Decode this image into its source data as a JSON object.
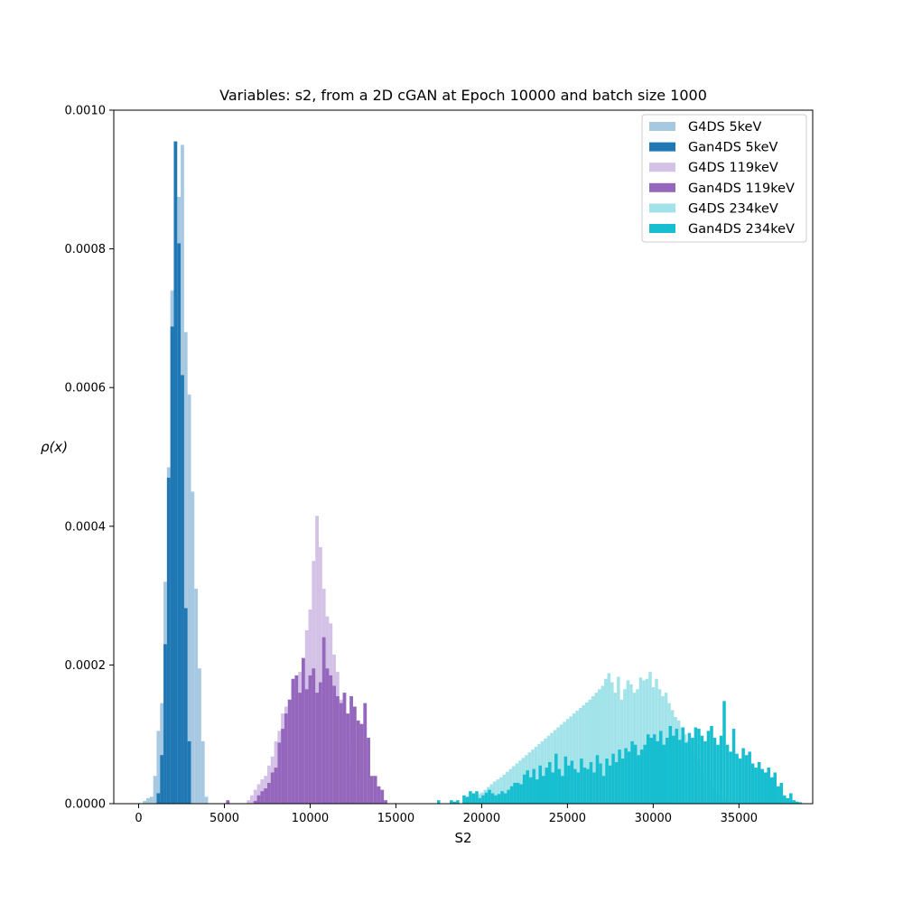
{
  "chart_data": {
    "type": "bar",
    "title": "Variables: s2, from a 2D cGAN at Epoch 10000 and batch size 1000",
    "xlabel": "S2",
    "ylabel": "ρ(x)",
    "xlim": [
      -1450,
      39300
    ],
    "ylim": [
      0,
      0.001
    ],
    "xticks": [
      {
        "value": 0,
        "label": "0"
      },
      {
        "value": 5000,
        "label": "5000"
      },
      {
        "value": 10000,
        "label": "10000"
      },
      {
        "value": 15000,
        "label": "15000"
      },
      {
        "value": 20000,
        "label": "20000"
      },
      {
        "value": 25000,
        "label": "25000"
      },
      {
        "value": 30000,
        "label": "30000"
      },
      {
        "value": 35000,
        "label": "35000"
      }
    ],
    "yticks": [
      {
        "value": 0,
        "label": "0.0000"
      },
      {
        "value": 0.0002,
        "label": "0.0002"
      },
      {
        "value": 0.0004,
        "label": "0.0004"
      },
      {
        "value": 0.0006,
        "label": "0.0006"
      },
      {
        "value": 0.0008,
        "label": "0.0008"
      },
      {
        "value": 0.001,
        "label": "0.0010"
      }
    ],
    "grid": false,
    "legend_position": "top-right",
    "series": [
      {
        "name": "G4DS 5keV",
        "color": "#a6c8e0",
        "bin_start": 250,
        "bin_width": 200,
        "values": [
          4e-06,
          8e-06,
          1e-05,
          4e-05,
          0.000105,
          0.000145,
          0.00032,
          0.000485,
          0.00074,
          0.000655,
          0.000875,
          0.00095,
          0.00068,
          0.00059,
          0.00045,
          0.00031,
          0.000195,
          9e-05,
          1e-05
        ]
      },
      {
        "name": "Gan4DS 5keV",
        "color": "#1f77b4",
        "bin_start": 1050,
        "bin_width": 200,
        "values": [
          1.5e-05,
          7e-05,
          0.00023,
          0.00047,
          0.000688,
          0.000955,
          0.000808,
          0.000618,
          0.000282,
          9e-05
        ]
      },
      {
        "name": "G4DS 119keV",
        "color": "#d4c1e6",
        "bin_start": 6300,
        "bin_width": 200,
        "values": [
          5e-06,
          1.2e-05,
          2e-05,
          2.8e-05,
          3.5e-05,
          4e-05,
          5.5e-05,
          6.8e-05,
          9e-05,
          0.000105,
          0.00013,
          0.00014,
          0.00015,
          0.00017,
          0.00018,
          0.00019,
          0.00021,
          0.00025,
          0.00028,
          0.00035,
          0.000415,
          0.00037,
          0.00031,
          0.00027,
          0.00026,
          0.000215,
          0.00019,
          0.00015,
          0.00013,
          9e-05,
          6e-05,
          4e-05,
          2e-05,
          1e-05
        ]
      },
      {
        "name": "Gan4DS 119keV",
        "color": "#9467bd",
        "bin_start": 5100,
        "bin_width": 200,
        "values": [
          5e-06,
          0,
          0,
          0,
          0,
          0,
          0,
          0,
          4e-06,
          1.2e-05,
          1.8e-05,
          2.2e-05,
          3e-05,
          4.5e-05,
          5.2e-05,
          8.8e-05,
          0.000108,
          0.00013,
          0.00015,
          0.00018,
          0.000185,
          0.00016,
          0.00021,
          0.000165,
          0.000185,
          0.000195,
          0.00016,
          0.000175,
          0.00024,
          0.000195,
          0.000185,
          0.00017,
          0.000155,
          0.000145,
          0.00016,
          0.00013,
          0.000155,
          0.00014,
          0.00012,
          0.000115,
          0.000145,
          9.5e-05,
          4e-05,
          4e-05,
          2.5e-05,
          2e-05,
          5e-06
        ]
      },
      {
        "name": "G4DS 234keV",
        "color": "#a2e3ea",
        "bin_start": 19000,
        "bin_width": 185,
        "values": [
          8e-06,
          1e-05,
          1e-05,
          1.2e-05,
          1.4e-05,
          1.6e-05,
          2e-05,
          2.4e-05,
          2.8e-05,
          3.2e-05,
          3.5e-05,
          3.8e-05,
          4.2e-05,
          4.6e-05,
          5e-05,
          5.4e-05,
          5.8e-05,
          6.2e-05,
          6.6e-05,
          7e-05,
          7.4e-05,
          7.8e-05,
          8.2e-05,
          8.6e-05,
          9e-05,
          9.4e-05,
          9.8e-05,
          0.000102,
          0.000106,
          0.00011,
          0.000114,
          0.000118,
          0.000122,
          0.000126,
          0.00013,
          0.000134,
          0.000138,
          0.000142,
          0.000146,
          0.00015,
          0.000155,
          0.00016,
          0.000165,
          0.00017,
          0.00018,
          0.000188,
          0.000175,
          0.00016,
          0.000183,
          0.00015,
          0.000165,
          0.000178,
          0.000172,
          0.00016,
          0.000165,
          0.000182,
          0.000178,
          0.00018,
          0.00019,
          0.000168,
          0.00018,
          0.000165,
          0.000155,
          0.00016,
          0.000145,
          0.000135,
          0.000125,
          0.00012,
          0.00011,
          0.0001,
          9e-05,
          8e-05,
          7e-05,
          6e-05,
          5.2e-05,
          4.5e-05,
          3.8e-05,
          3.2e-05,
          2.5e-05,
          1.8e-05,
          1.2e-05,
          8e-06,
          6e-06,
          5e-06,
          4e-06,
          3e-06,
          2e-06,
          2e-06,
          1e-06,
          1e-06,
          1e-06,
          1e-06,
          1e-06,
          1e-06,
          1e-06,
          1e-06
        ]
      },
      {
        "name": "Gan4DS 234keV",
        "color": "#17becf",
        "bin_start": 17400,
        "bin_width": 185,
        "values": [
          5e-06,
          0,
          0,
          0,
          5e-06,
          3e-06,
          5e-06,
          0,
          1.2e-05,
          1e-05,
          1.8e-05,
          1.5e-05,
          1.8e-05,
          8e-06,
          1.2e-05,
          1.6e-05,
          2e-05,
          1.5e-05,
          1.2e-05,
          1.4e-05,
          1.8e-05,
          1.5e-05,
          2e-05,
          2.5e-05,
          3e-05,
          3e-05,
          2.8e-05,
          4.2e-05,
          4.8e-05,
          3.8e-05,
          5e-05,
          3.5e-05,
          5.5e-05,
          4e-05,
          5.2e-05,
          6e-05,
          4.5e-05,
          7.2e-05,
          5e-05,
          4e-05,
          6.8e-05,
          5.5e-05,
          6.2e-05,
          5e-05,
          4.5e-05,
          6.5e-05,
          5.2e-05,
          5e-05,
          6e-05,
          4.5e-05,
          7e-05,
          5.8e-05,
          4e-05,
          6.5e-05,
          5.5e-05,
          7.2e-05,
          6e-05,
          7.8e-05,
          6.5e-05,
          8e-05,
          7.5e-05,
          9e-05,
          8.5e-05,
          7e-05,
          7.8e-05,
          8.5e-05,
          0.0001,
          9.5e-05,
          0.0001,
          9e-05,
          0.000105,
          8.5e-05,
          9.5e-05,
          0.000112,
          9.8e-05,
          0.000108,
          9.2e-05,
          0.00011,
          8.8e-05,
          0.000102,
          9.5e-05,
          0.00011,
          0.000108,
          9.8e-05,
          9e-05,
          0.000105,
          0.000112,
          9.5e-05,
          8.5e-05,
          9.8e-05,
          0.000148,
          8.5e-05,
          7.5e-05,
          0.000108,
          7.2e-05,
          6.5e-05,
          8e-05,
          7e-05,
          7.5e-05,
          5.8e-05,
          5.2e-05,
          6e-05,
          5e-05,
          4.5e-05,
          5.2e-05,
          3.8e-05,
          4.5e-05,
          2.5e-05,
          3e-05,
          1.2e-05,
          8e-06,
          1.5e-05,
          5e-06,
          3e-06,
          2e-06
        ]
      }
    ],
    "legend_order": [
      0,
      1,
      2,
      3,
      4,
      5
    ]
  }
}
